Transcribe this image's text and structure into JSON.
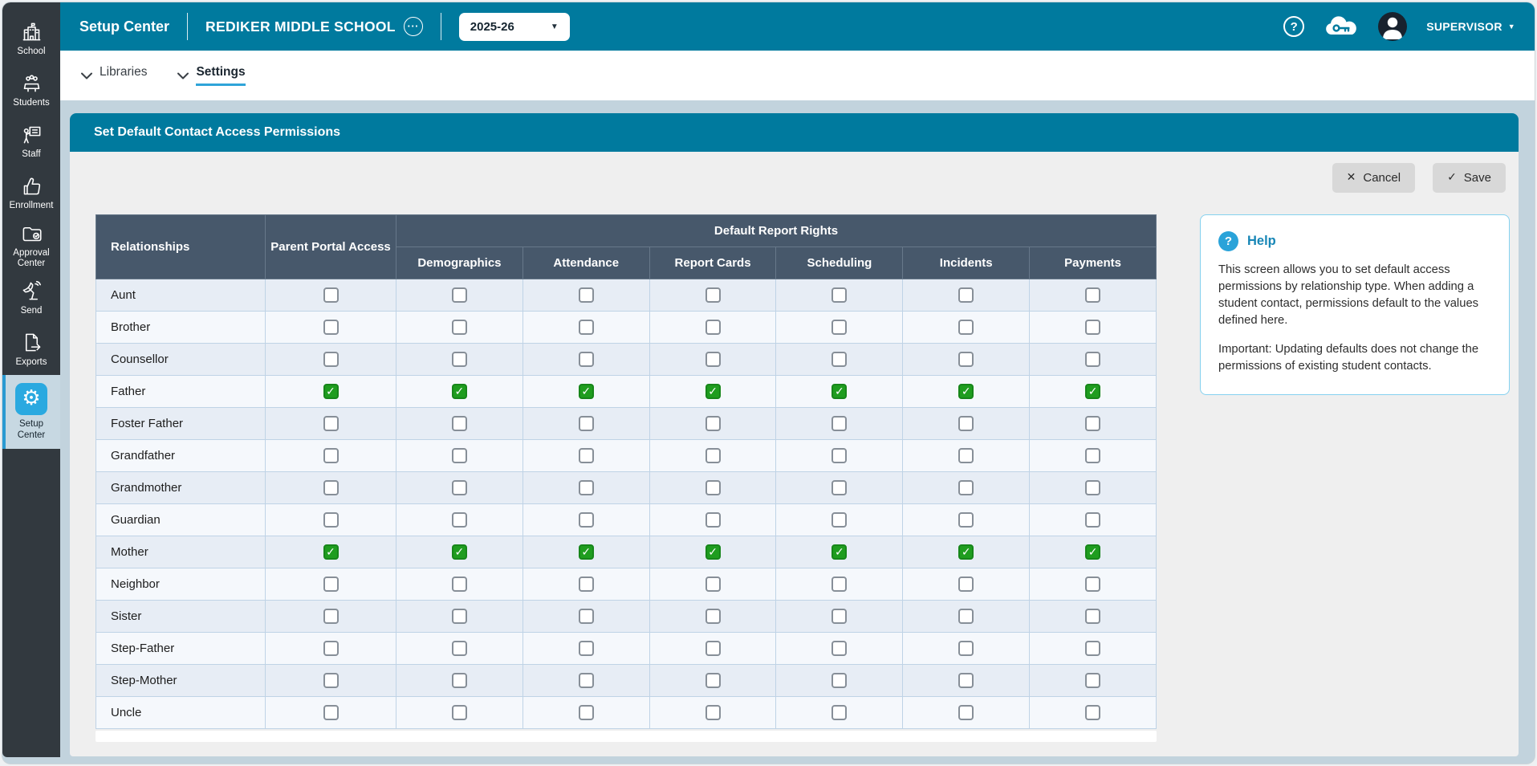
{
  "header": {
    "app_title": "Setup Center",
    "school_name": "REDIKER MIDDLE SCHOOL",
    "year_selected": "2025-26",
    "user_label": "SUPERVISOR"
  },
  "icons": {
    "gear_glyph": "⚙",
    "ellipsis_glyph": "···",
    "help_glyph": "?",
    "question_glyph": "?",
    "caret_glyph": "▼",
    "cancel_glyph": "✕",
    "save_glyph": "✓",
    "cloud_key_icon": "cloud-key",
    "avatar_icon": "user-silhouette"
  },
  "sidebar": {
    "items": [
      {
        "label": "School",
        "icon": "school-icon",
        "active": false
      },
      {
        "label": "Students",
        "icon": "students-icon",
        "active": false
      },
      {
        "label": "Staff",
        "icon": "staff-icon",
        "active": false
      },
      {
        "label": "Enrollment",
        "icon": "thumbs-up-icon",
        "active": false
      },
      {
        "label": "Approval Center",
        "icon": "approval-folder-icon",
        "active": false
      },
      {
        "label": "Send",
        "icon": "satellite-icon",
        "active": false
      },
      {
        "label": "Exports",
        "icon": "export-document-icon",
        "active": false
      },
      {
        "label": "Setup Center",
        "icon": "gear-icon",
        "active": true
      }
    ]
  },
  "tabs": {
    "items": [
      {
        "label": "Libraries",
        "active": false
      },
      {
        "label": "Settings",
        "active": true
      }
    ]
  },
  "panel": {
    "title": "Set Default Contact Access Permissions",
    "cancel_label": "Cancel",
    "save_label": "Save"
  },
  "table": {
    "columns": {
      "relationships": "Relationships",
      "parent_portal": "Parent Portal Access",
      "group": "Default Report Rights",
      "rights": [
        "Demographics",
        "Attendance",
        "Report Cards",
        "Scheduling",
        "Incidents",
        "Payments"
      ]
    },
    "rows": [
      {
        "name": "Aunt",
        "values": [
          false,
          false,
          false,
          false,
          false,
          false,
          false
        ]
      },
      {
        "name": "Brother",
        "values": [
          false,
          false,
          false,
          false,
          false,
          false,
          false
        ]
      },
      {
        "name": "Counsellor",
        "values": [
          false,
          false,
          false,
          false,
          false,
          false,
          false
        ]
      },
      {
        "name": "Father",
        "values": [
          true,
          true,
          true,
          true,
          true,
          true,
          true
        ]
      },
      {
        "name": "Foster Father",
        "values": [
          false,
          false,
          false,
          false,
          false,
          false,
          false
        ]
      },
      {
        "name": "Grandfather",
        "values": [
          false,
          false,
          false,
          false,
          false,
          false,
          false
        ]
      },
      {
        "name": "Grandmother",
        "values": [
          false,
          false,
          false,
          false,
          false,
          false,
          false
        ]
      },
      {
        "name": "Guardian",
        "values": [
          false,
          false,
          false,
          false,
          false,
          false,
          false
        ]
      },
      {
        "name": "Mother",
        "values": [
          true,
          true,
          true,
          true,
          true,
          true,
          true
        ]
      },
      {
        "name": "Neighbor",
        "values": [
          false,
          false,
          false,
          false,
          false,
          false,
          false
        ]
      },
      {
        "name": "Sister",
        "values": [
          false,
          false,
          false,
          false,
          false,
          false,
          false
        ]
      },
      {
        "name": "Step-Father",
        "values": [
          false,
          false,
          false,
          false,
          false,
          false,
          false
        ]
      },
      {
        "name": "Step-Mother",
        "values": [
          false,
          false,
          false,
          false,
          false,
          false,
          false
        ]
      },
      {
        "name": "Uncle",
        "values": [
          false,
          false,
          false,
          false,
          false,
          false,
          false
        ]
      }
    ]
  },
  "help": {
    "title": "Help",
    "para1": "This screen allows you to set default access permissions by relationship type. When adding a student contact, permissions default to the values defined here.",
    "para2": "Important: Updating defaults does not change the permissions of existing student contacts."
  },
  "colors": {
    "accent_teal": "#007a9e",
    "sidebar_dark": "#32393f",
    "active_tile_blue": "#2aa9e0",
    "checked_green": "#1f9d1f",
    "tab_underline": "#2fa4d9",
    "table_header": "#47586b",
    "help_border": "#85d1ef"
  }
}
